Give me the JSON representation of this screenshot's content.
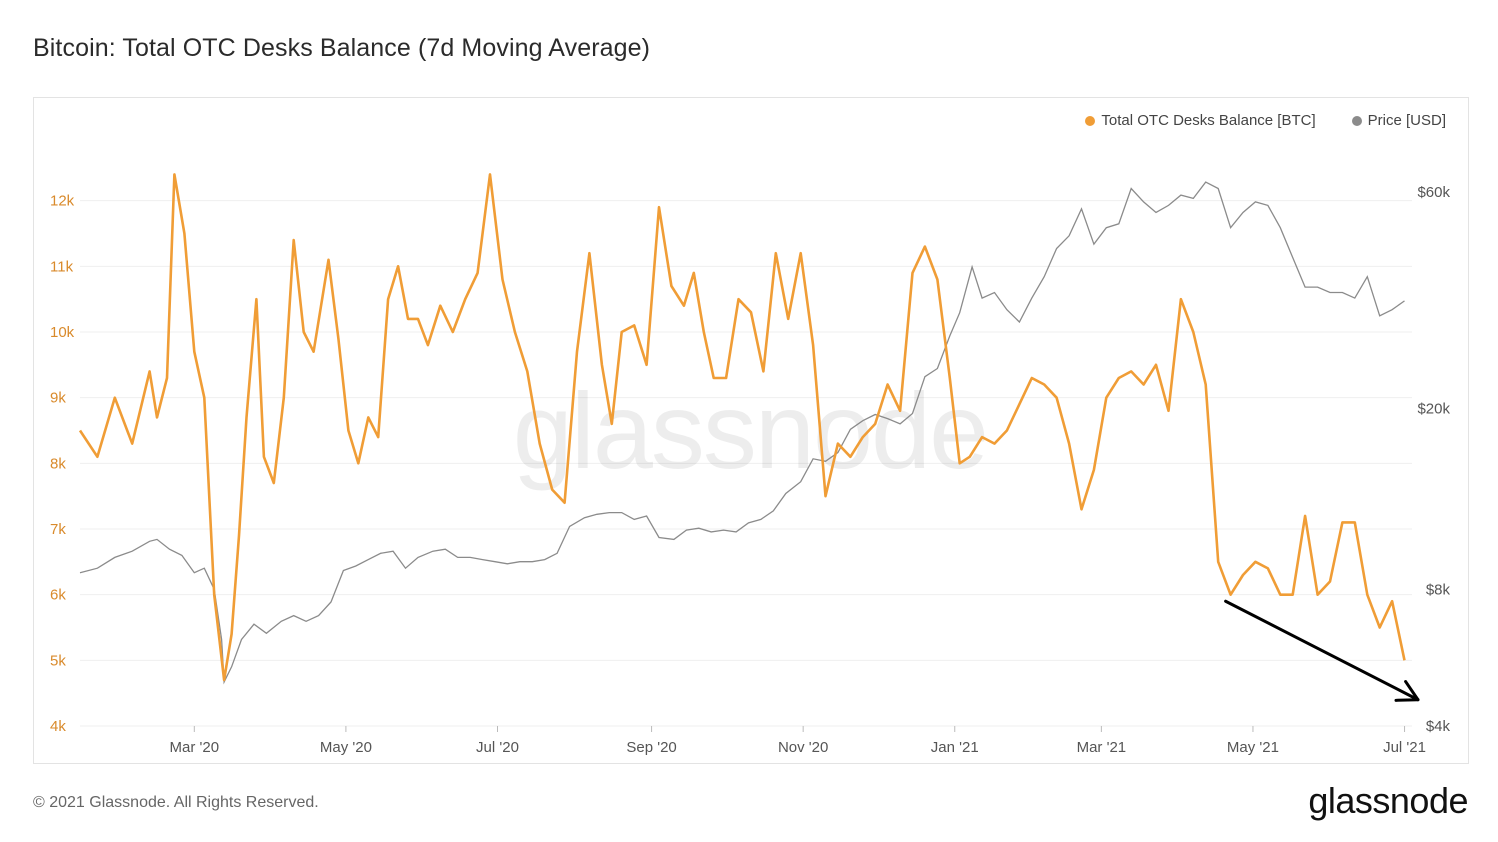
{
  "header": {
    "title": "Bitcoin: Total OTC Desks Balance (7d Moving Average)"
  },
  "footer": {
    "copyright": "© 2021 Glassnode. All Rights Reserved.",
    "brand": "glassnode"
  },
  "watermark": "glassnode",
  "colors": {
    "balance": "#F09D36",
    "price": "#8B8B8B",
    "axis_left": "#D98A2B",
    "grid": "#EFEFEF",
    "arrow": "#000000"
  },
  "chart_data": {
    "type": "line",
    "title": "Bitcoin: Total OTC Desks Balance (7d Moving Average)",
    "legend": [
      "Total OTC Desks Balance [BTC]",
      "Price [USD]"
    ],
    "legend_position": "top-right",
    "x_axis": {
      "ticks": [
        "Mar '20",
        "May '20",
        "Jul '20",
        "Sep '20",
        "Nov '20",
        "Jan '21",
        "Mar '21",
        "May '21",
        "Jul '21"
      ],
      "range": [
        "2020-01-15",
        "2021-07-04"
      ]
    },
    "y_left": {
      "label": "Total OTC Desks Balance [BTC]",
      "ticks": [
        "4k",
        "5k",
        "6k",
        "7k",
        "8k",
        "9k",
        "10k",
        "11k",
        "12k"
      ],
      "range": [
        4000,
        13000
      ]
    },
    "y_right": {
      "label": "Price [USD]",
      "scale": "log",
      "ticks": [
        "$4k",
        "$8k",
        "$20k",
        "$60k"
      ],
      "tick_values": [
        4000,
        8000,
        20000,
        60000
      ],
      "range": [
        4000,
        80000
      ]
    },
    "annotations": [
      {
        "type": "arrow",
        "direction": "down-right",
        "from_date": "2021-04-20",
        "to_date": "2021-07-04",
        "from_balance": 5900,
        "to_balance": 4400,
        "note": "declining trend arrow"
      }
    ],
    "series": [
      {
        "name": "Total OTC Desks Balance [BTC]",
        "axis": "left",
        "dates": [
          "2020-01-15",
          "2020-01-22",
          "2020-01-29",
          "2020-02-05",
          "2020-02-12",
          "2020-02-15",
          "2020-02-19",
          "2020-02-22",
          "2020-02-26",
          "2020-03-01",
          "2020-03-05",
          "2020-03-09",
          "2020-03-13",
          "2020-03-16",
          "2020-03-19",
          "2020-03-22",
          "2020-03-26",
          "2020-03-29",
          "2020-04-02",
          "2020-04-06",
          "2020-04-10",
          "2020-04-14",
          "2020-04-18",
          "2020-04-24",
          "2020-04-28",
          "2020-05-02",
          "2020-05-06",
          "2020-05-10",
          "2020-05-14",
          "2020-05-18",
          "2020-05-22",
          "2020-05-26",
          "2020-05-30",
          "2020-06-03",
          "2020-06-08",
          "2020-06-13",
          "2020-06-18",
          "2020-06-23",
          "2020-06-28",
          "2020-07-03",
          "2020-07-08",
          "2020-07-13",
          "2020-07-18",
          "2020-07-23",
          "2020-07-28",
          "2020-08-02",
          "2020-08-07",
          "2020-08-12",
          "2020-08-16",
          "2020-08-20",
          "2020-08-25",
          "2020-08-30",
          "2020-09-04",
          "2020-09-09",
          "2020-09-14",
          "2020-09-18",
          "2020-09-22",
          "2020-09-26",
          "2020-10-01",
          "2020-10-06",
          "2020-10-11",
          "2020-10-16",
          "2020-10-21",
          "2020-10-26",
          "2020-10-31",
          "2020-11-05",
          "2020-11-10",
          "2020-11-15",
          "2020-11-20",
          "2020-11-25",
          "2020-11-30",
          "2020-12-05",
          "2020-12-10",
          "2020-12-15",
          "2020-12-20",
          "2020-12-25",
          "2020-12-30",
          "2021-01-03",
          "2021-01-07",
          "2021-01-12",
          "2021-01-17",
          "2021-01-22",
          "2021-01-27",
          "2021-02-01",
          "2021-02-06",
          "2021-02-11",
          "2021-02-16",
          "2021-02-21",
          "2021-02-26",
          "2021-03-03",
          "2021-03-08",
          "2021-03-13",
          "2021-03-18",
          "2021-03-23",
          "2021-03-28",
          "2021-04-02",
          "2021-04-07",
          "2021-04-12",
          "2021-04-17",
          "2021-04-22",
          "2021-04-27",
          "2021-05-02",
          "2021-05-07",
          "2021-05-12",
          "2021-05-17",
          "2021-05-22",
          "2021-05-27",
          "2021-06-01",
          "2021-06-06",
          "2021-06-11",
          "2021-06-16",
          "2021-06-21",
          "2021-06-26",
          "2021-07-01"
        ],
        "values": [
          8500,
          8100,
          9000,
          8300,
          9400,
          8700,
          9300,
          12400,
          11500,
          9700,
          9000,
          6000,
          4700,
          5400,
          6900,
          8700,
          10500,
          8100,
          7700,
          9000,
          11400,
          10000,
          9700,
          11100,
          9900,
          8500,
          8000,
          8700,
          8400,
          10500,
          11000,
          10200,
          10200,
          9800,
          10400,
          10000,
          10500,
          10900,
          12400,
          10800,
          10000,
          9400,
          8300,
          7600,
          7400,
          9700,
          11200,
          9500,
          8600,
          10000,
          10100,
          9500,
          11900,
          10700,
          10400,
          10900,
          10000,
          9300,
          9300,
          10500,
          10300,
          9400,
          11200,
          10200,
          11200,
          9800,
          7500,
          8300,
          8100,
          8400,
          8600,
          9200,
          8800,
          10900,
          11300,
          10800,
          9300,
          8000,
          8100,
          8400,
          8300,
          8500,
          8900,
          9300,
          9200,
          9000,
          8300,
          7300,
          7900,
          9000,
          9300,
          9400,
          9200,
          9500,
          8800,
          10500,
          10000,
          9200,
          6500,
          6000,
          6300,
          6500,
          6400,
          6000,
          6000,
          7200,
          6000,
          6200,
          7100,
          7100,
          6000,
          5500,
          5900,
          5000
        ],
        "y_range_approx": [
          4700,
          12400
        ]
      },
      {
        "name": "Price [USD]",
        "axis": "right",
        "dates": [
          "2020-01-15",
          "2020-01-22",
          "2020-01-29",
          "2020-02-05",
          "2020-02-12",
          "2020-02-15",
          "2020-02-20",
          "2020-02-25",
          "2020-03-01",
          "2020-03-05",
          "2020-03-09",
          "2020-03-12",
          "2020-03-13",
          "2020-03-16",
          "2020-03-20",
          "2020-03-25",
          "2020-03-30",
          "2020-04-05",
          "2020-04-10",
          "2020-04-15",
          "2020-04-20",
          "2020-04-25",
          "2020-04-30",
          "2020-05-05",
          "2020-05-10",
          "2020-05-15",
          "2020-05-20",
          "2020-05-25",
          "2020-05-30",
          "2020-06-05",
          "2020-06-10",
          "2020-06-15",
          "2020-06-20",
          "2020-06-25",
          "2020-06-30",
          "2020-07-05",
          "2020-07-10",
          "2020-07-15",
          "2020-07-20",
          "2020-07-25",
          "2020-07-30",
          "2020-08-05",
          "2020-08-10",
          "2020-08-15",
          "2020-08-20",
          "2020-08-25",
          "2020-08-30",
          "2020-09-04",
          "2020-09-10",
          "2020-09-15",
          "2020-09-20",
          "2020-09-25",
          "2020-09-30",
          "2020-10-05",
          "2020-10-10",
          "2020-10-15",
          "2020-10-20",
          "2020-10-25",
          "2020-10-31",
          "2020-11-05",
          "2020-11-10",
          "2020-11-15",
          "2020-11-20",
          "2020-11-25",
          "2020-11-30",
          "2020-12-05",
          "2020-12-10",
          "2020-12-15",
          "2020-12-20",
          "2020-12-25",
          "2020-12-30",
          "2021-01-03",
          "2021-01-08",
          "2021-01-12",
          "2021-01-17",
          "2021-01-22",
          "2021-01-27",
          "2021-02-01",
          "2021-02-06",
          "2021-02-11",
          "2021-02-16",
          "2021-02-21",
          "2021-02-26",
          "2021-03-03",
          "2021-03-08",
          "2021-03-13",
          "2021-03-18",
          "2021-03-23",
          "2021-03-28",
          "2021-04-02",
          "2021-04-07",
          "2021-04-12",
          "2021-04-17",
          "2021-04-22",
          "2021-04-27",
          "2021-05-02",
          "2021-05-07",
          "2021-05-12",
          "2021-05-17",
          "2021-05-22",
          "2021-05-27",
          "2021-06-01",
          "2021-06-06",
          "2021-06-11",
          "2021-06-16",
          "2021-06-21",
          "2021-06-26",
          "2021-07-01"
        ],
        "values": [
          8700,
          8900,
          9400,
          9700,
          10200,
          10300,
          9800,
          9500,
          8700,
          8900,
          8000,
          6200,
          5000,
          5400,
          6200,
          6700,
          6400,
          6800,
          7000,
          6800,
          7000,
          7500,
          8800,
          9000,
          9300,
          9600,
          9700,
          8900,
          9400,
          9700,
          9800,
          9400,
          9400,
          9300,
          9200,
          9100,
          9200,
          9200,
          9300,
          9600,
          11000,
          11500,
          11700,
          11800,
          11800,
          11400,
          11600,
          10400,
          10300,
          10800,
          10900,
          10700,
          10800,
          10700,
          11200,
          11400,
          11900,
          13000,
          13800,
          15500,
          15300,
          16000,
          18000,
          18800,
          19400,
          19000,
          18500,
          19500,
          23500,
          24500,
          28900,
          32500,
          41000,
          35000,
          36000,
          33000,
          31000,
          35000,
          39000,
          45000,
          48000,
          55000,
          46000,
          50000,
          51000,
          61000,
          57000,
          54000,
          56000,
          59000,
          58000,
          63000,
          61000,
          50000,
          54000,
          57000,
          56000,
          50000,
          43000,
          37000,
          37000,
          36000,
          36000,
          35000,
          39000,
          32000,
          33000,
          34500
        ]
      }
    ]
  }
}
